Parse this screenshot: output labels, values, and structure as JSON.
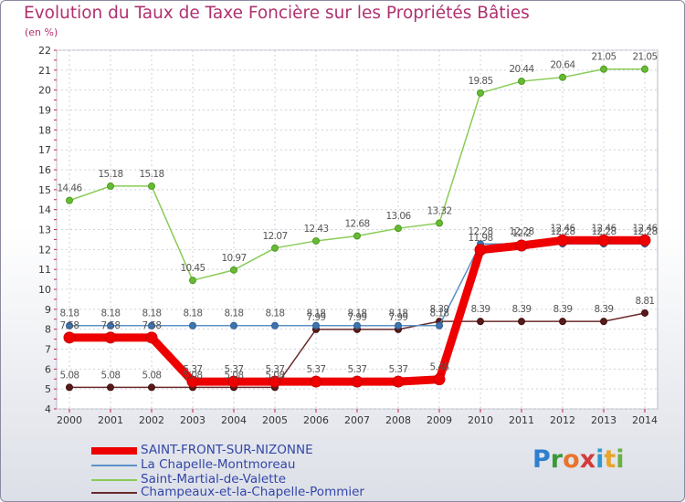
{
  "title": "Evolution du Taux de Taxe Foncière sur les Propriétés Bâties",
  "unit_label": "(en %)",
  "logo": {
    "text": "Proxiti",
    "letters": [
      "P",
      "r",
      "o",
      "x",
      "i",
      "t",
      "i"
    ],
    "colors": [
      "#2f7fd0",
      "#3a9a3a",
      "#e8742a",
      "#d43a3a",
      "#2f9ad0",
      "#e8a52a",
      "#6ab040"
    ]
  },
  "chart_data": {
    "type": "line",
    "title": "Evolution du Taux de Taxe Foncière sur les Propriétés Bâties",
    "ylabel": "(en %)",
    "xlabel": "",
    "x": [
      2000,
      2001,
      2002,
      2003,
      2004,
      2005,
      2006,
      2007,
      2008,
      2009,
      2010,
      2011,
      2012,
      2013,
      2014
    ],
    "ylim": [
      4,
      22
    ],
    "yticks": [
      4,
      5,
      6,
      7,
      8,
      9,
      10,
      11,
      12,
      13,
      14,
      15,
      16,
      17,
      18,
      19,
      20,
      21,
      22
    ],
    "grid": true,
    "legend": "bottom-left",
    "series": [
      {
        "name": "SAINT-FRONT-SUR-NIZONNE",
        "color": "#ee0000",
        "values": [
          7.58,
          7.58,
          7.58,
          5.37,
          5.37,
          5.37,
          5.37,
          5.37,
          5.37,
          5.48,
          11.98,
          12.2,
          12.46,
          12.46,
          12.46
        ],
        "labels": [
          "7.58",
          "7.58",
          "7.58",
          "5.37",
          "5.37",
          "5.37",
          "5.37",
          "5.37",
          "5.37",
          "5.48",
          "11.98",
          "12.2",
          "12.46",
          "12.46",
          "12.46"
        ]
      },
      {
        "name": "La Chapelle-Montmoreau",
        "color": "#5b93c7",
        "values": [
          8.18,
          8.18,
          8.18,
          8.18,
          8.18,
          8.18,
          8.18,
          8.18,
          8.18,
          8.18,
          12.28,
          12.28,
          12.28,
          12.28,
          12.28
        ],
        "labels": [
          "8.18",
          "8.18",
          "8.18",
          "8.18",
          "8.18",
          "8.18",
          "8.18",
          "8.18",
          "8.18",
          "8.18",
          "12.28",
          "12.28",
          "12.28",
          "12.28",
          "12.28"
        ]
      },
      {
        "name": "Saint-Martial-de-Valette",
        "color": "#88cc55",
        "values": [
          14.46,
          15.18,
          15.18,
          10.45,
          10.97,
          12.07,
          12.43,
          12.68,
          13.06,
          13.32,
          19.85,
          20.44,
          20.64,
          21.05,
          21.05
        ],
        "labels": [
          "14.46",
          "15.18",
          "15.18",
          "10.45",
          "10.97",
          "12.07",
          "12.43",
          "12.68",
          "13.06",
          "13.32",
          "19.85",
          "20.44",
          "20.64",
          "21.05",
          "21.05"
        ]
      },
      {
        "name": "Champeaux-et-la-Chapelle-Pommier",
        "color": "#6b2b2b",
        "values": [
          5.08,
          5.08,
          5.08,
          5.08,
          5.08,
          5.08,
          7.99,
          7.99,
          7.99,
          8.39,
          8.39,
          8.39,
          8.39,
          8.39,
          8.81
        ],
        "labels": [
          "5.08",
          "5.08",
          "5.08",
          "5.08",
          "5.08",
          "5.08",
          "7.99",
          "7.99",
          "7.99",
          "8.39",
          "8.39",
          "8.39",
          "8.39",
          "8.39",
          "8.81"
        ]
      }
    ]
  }
}
